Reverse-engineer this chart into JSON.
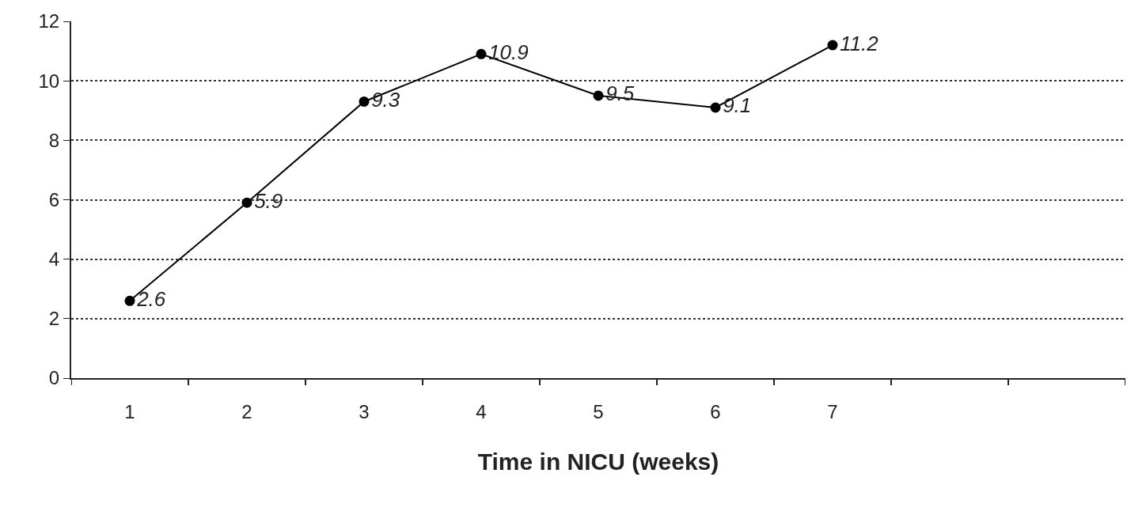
{
  "chart_data": {
    "type": "line",
    "xlabel": "Time in NICU (weeks)",
    "categories": [
      "1",
      "2",
      "3",
      "4",
      "5",
      "6",
      "7",
      null,
      null
    ],
    "values": [
      2.6,
      5.9,
      9.3,
      10.9,
      9.5,
      9.1,
      11.2,
      null,
      null
    ],
    "color": "#000000",
    "ylim": [
      0,
      12
    ],
    "yticks": [
      0,
      2,
      4,
      6,
      8,
      10,
      12
    ],
    "grid": "y",
    "marker": "circle",
    "data_labels": true
  }
}
